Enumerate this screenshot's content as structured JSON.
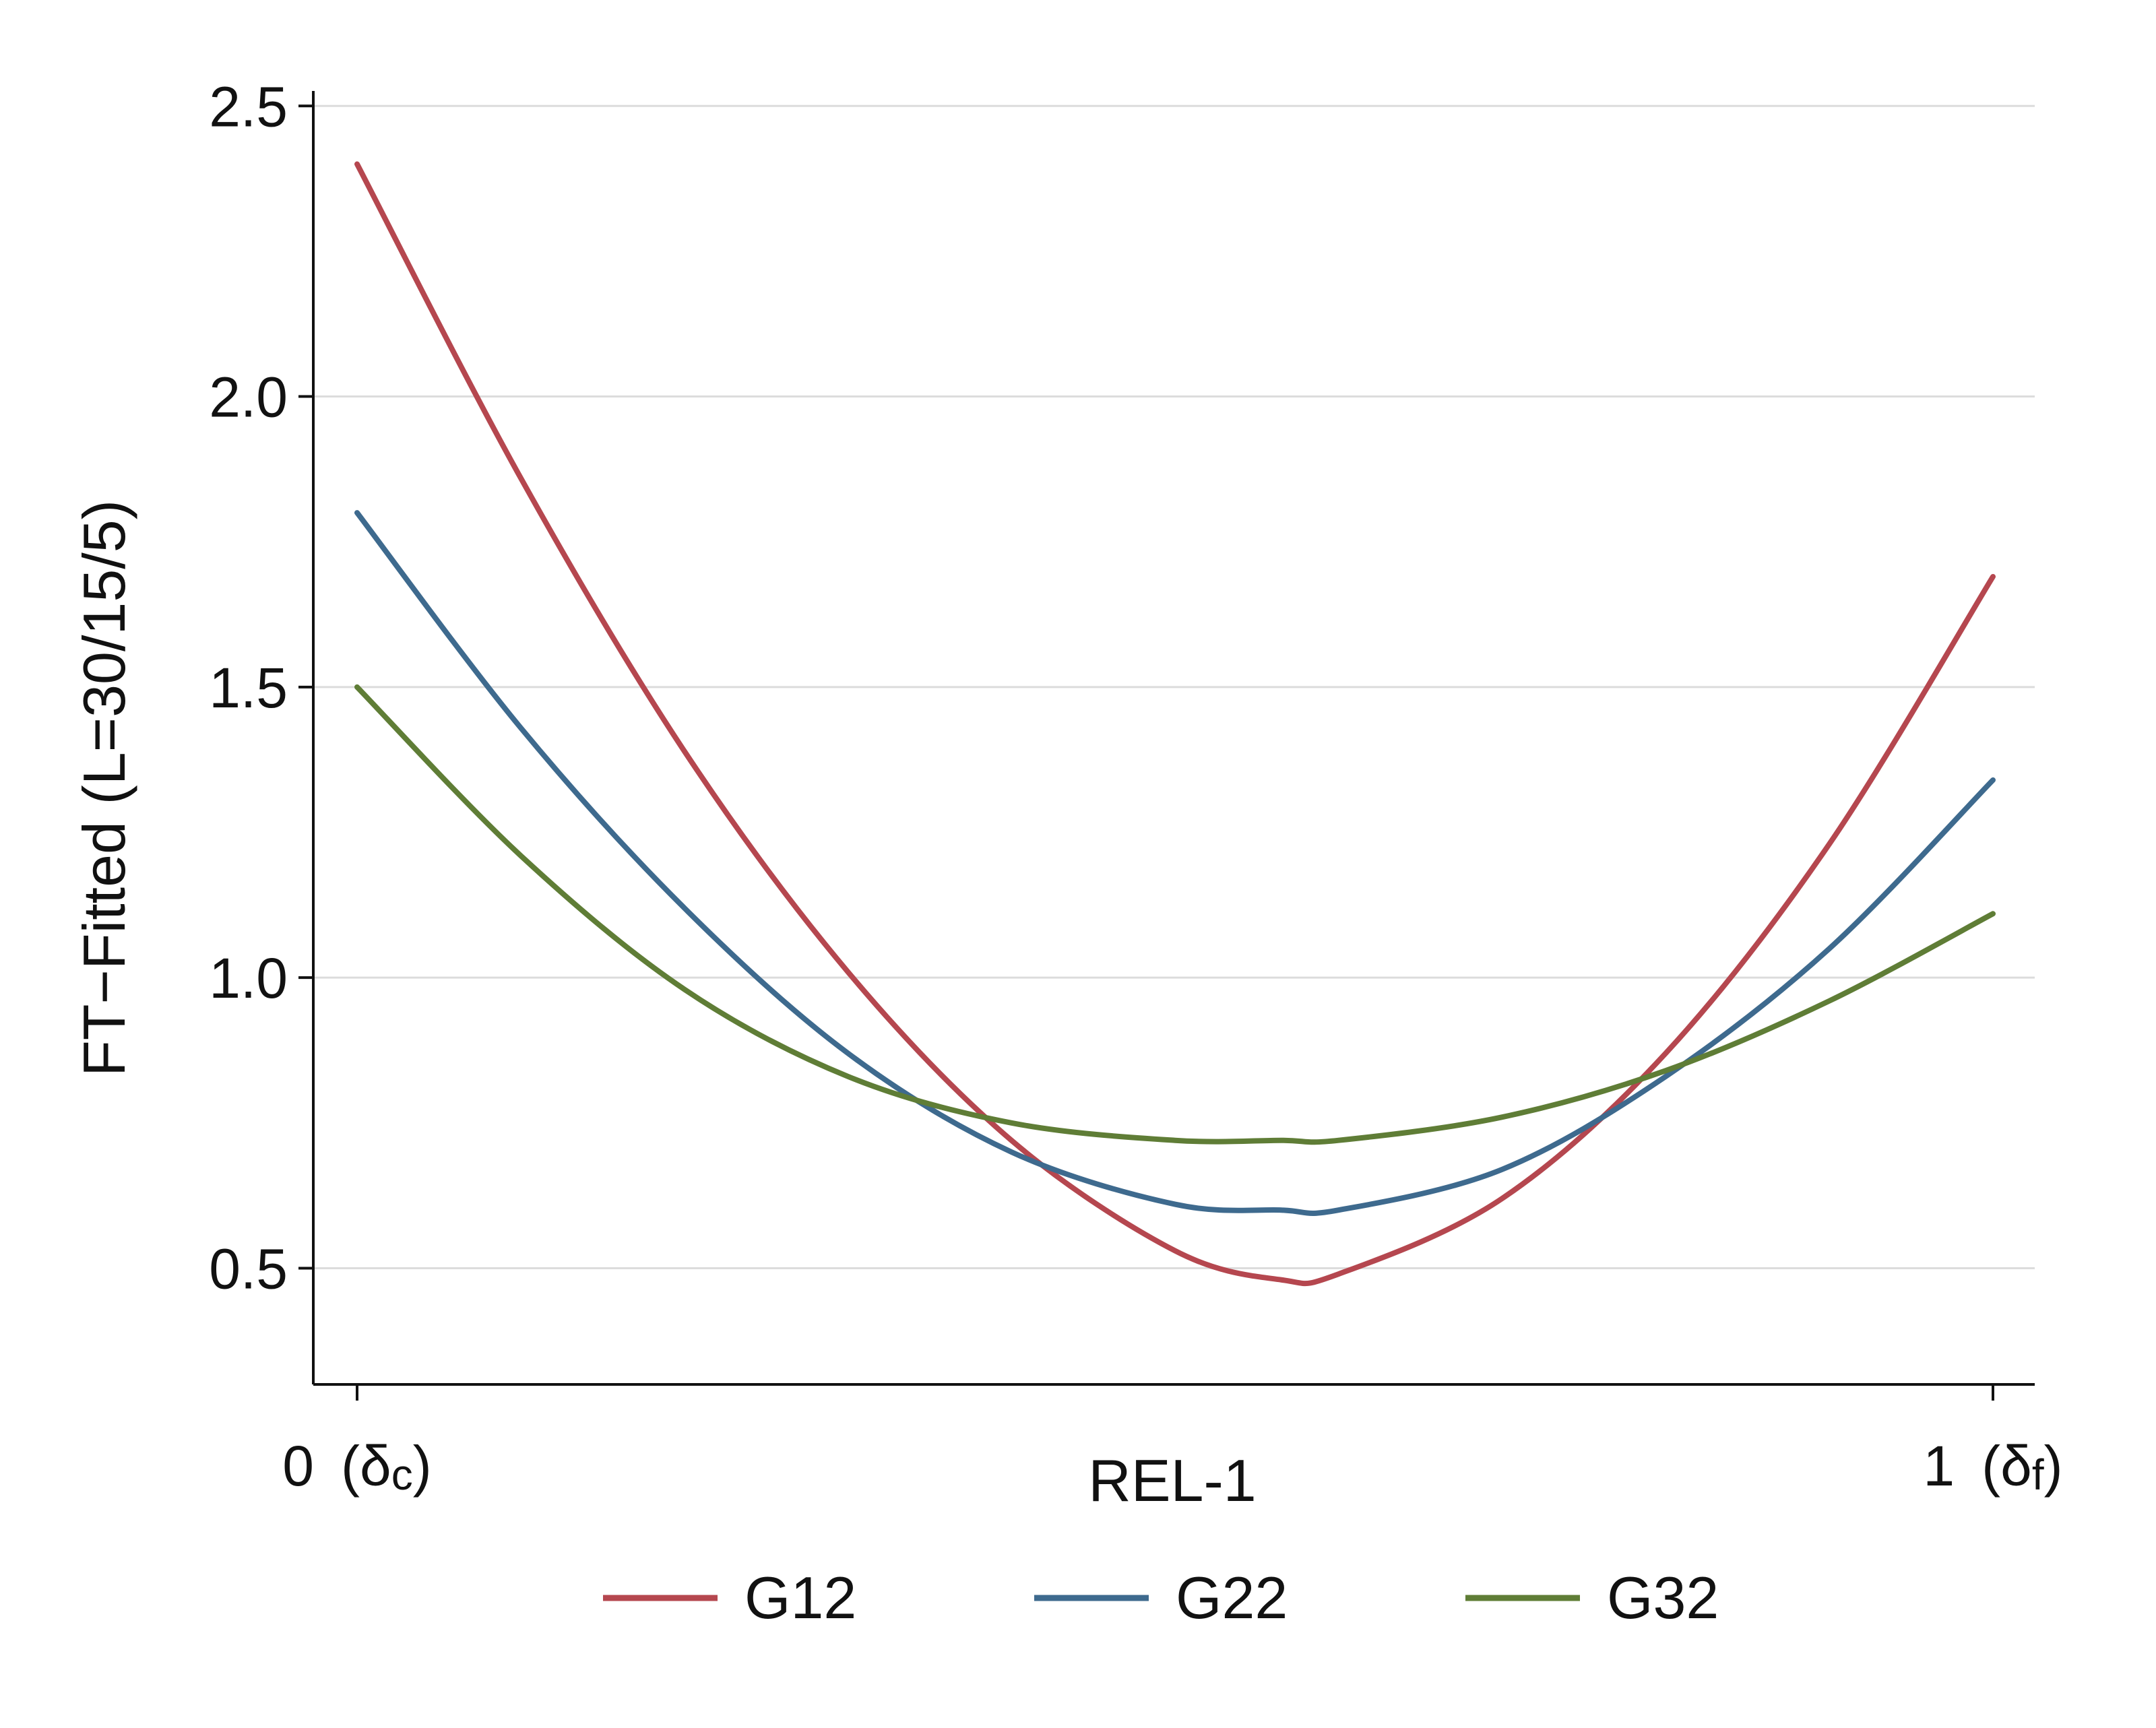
{
  "chart_data": {
    "type": "line",
    "xlabel": "REL-1",
    "ylabel": "FT−Fitted (L=30/15/5)",
    "xlim": [
      0,
      1
    ],
    "ylim": [
      0.3,
      2.52
    ],
    "x_ticks": [
      {
        "value": 0,
        "label": "0",
        "sub_base": "(δ",
        "sub": "c",
        "sub_close": ")"
      },
      {
        "value": 1,
        "label": "1",
        "sub_base": "(δ",
        "sub": "f",
        "sub_close": ")"
      }
    ],
    "y_ticks": [
      {
        "value": 0.5,
        "label": "0.5"
      },
      {
        "value": 1.0,
        "label": "1.0"
      },
      {
        "value": 1.5,
        "label": "1.5"
      },
      {
        "value": 2.0,
        "label": "2.0"
      },
      {
        "value": 2.5,
        "label": "2.5"
      }
    ],
    "grid": true,
    "legend_position": "bottom",
    "series": [
      {
        "name": "G12",
        "color": "#b5474f",
        "x": [
          0,
          0.1,
          0.2,
          0.3,
          0.4,
          0.5,
          0.565,
          0.6,
          0.7,
          0.8,
          0.9,
          1.0
        ],
        "y": [
          2.4,
          1.86,
          1.39,
          1.01,
          0.72,
          0.53,
          0.48,
          0.49,
          0.62,
          0.87,
          1.23,
          1.69
        ]
      },
      {
        "name": "G22",
        "color": "#3e6a8e",
        "x": [
          0,
          0.1,
          0.2,
          0.3,
          0.4,
          0.5,
          0.565,
          0.6,
          0.7,
          0.8,
          0.9,
          1.0
        ],
        "y": [
          1.8,
          1.43,
          1.12,
          0.87,
          0.7,
          0.61,
          0.6,
          0.6,
          0.67,
          0.83,
          1.05,
          1.34
        ]
      },
      {
        "name": "G32",
        "color": "#5f7d36",
        "x": [
          0,
          0.1,
          0.2,
          0.3,
          0.4,
          0.5,
          0.565,
          0.6,
          0.7,
          0.8,
          0.9,
          1.0
        ],
        "y": [
          1.5,
          1.21,
          0.98,
          0.83,
          0.75,
          0.72,
          0.72,
          0.72,
          0.76,
          0.84,
          0.96,
          1.11
        ]
      }
    ]
  }
}
